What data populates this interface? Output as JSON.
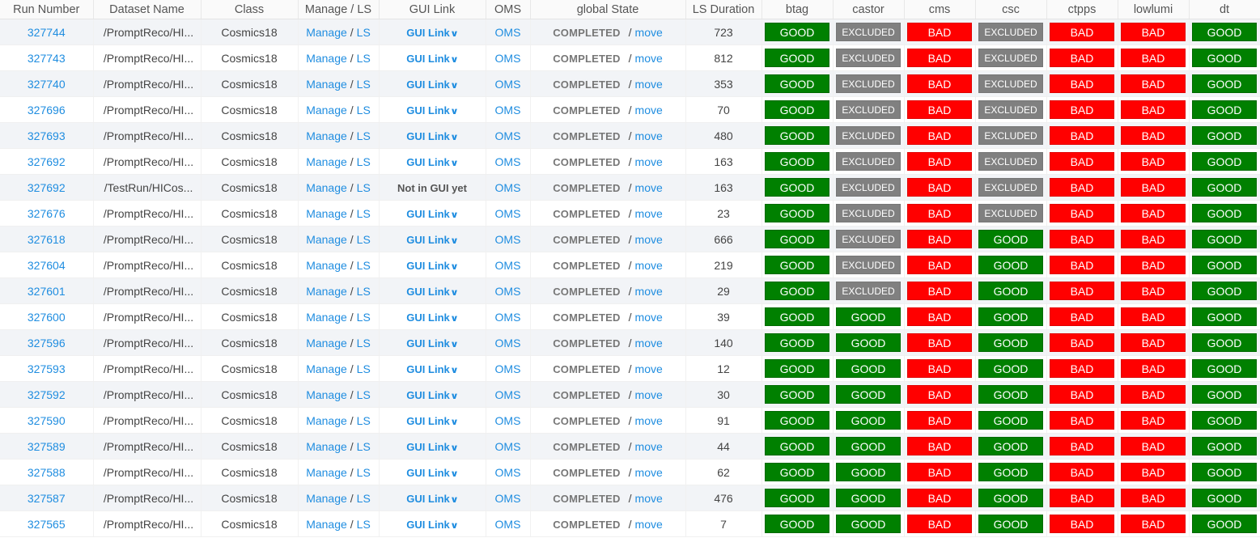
{
  "colors": {
    "good": "#008000",
    "bad": "#ff0000",
    "excluded": "#808080",
    "link": "#1f8de0"
  },
  "icons": {
    "gui_dropdown": "chevron-down-icon"
  },
  "columns": [
    "Run Number",
    "Dataset Name",
    "Class",
    "Manage / LS",
    "GUI Link",
    "OMS",
    "global State",
    "LS Duration",
    "btag",
    "castor",
    "cms",
    "csc",
    "ctpps",
    "lowlumi",
    "dt"
  ],
  "labels": {
    "manage": "Manage",
    "slash": "/",
    "ls": "LS",
    "gui_link": "GUI Link",
    "not_in_gui": "Not in GUI yet",
    "oms": "OMS",
    "move": "move"
  },
  "rows": [
    {
      "run": "327744",
      "dataset": "/PromptReco/HI...",
      "class": "Cosmics18",
      "gui": "GUI Link",
      "state": "COMPLETED",
      "duration": "723",
      "flags": [
        "GOOD",
        "EXCLUDED",
        "BAD",
        "EXCLUDED",
        "BAD",
        "BAD",
        "GOOD"
      ]
    },
    {
      "run": "327743",
      "dataset": "/PromptReco/HI...",
      "class": "Cosmics18",
      "gui": "GUI Link",
      "state": "COMPLETED",
      "duration": "812",
      "flags": [
        "GOOD",
        "EXCLUDED",
        "BAD",
        "EXCLUDED",
        "BAD",
        "BAD",
        "GOOD"
      ]
    },
    {
      "run": "327740",
      "dataset": "/PromptReco/HI...",
      "class": "Cosmics18",
      "gui": "GUI Link",
      "state": "COMPLETED",
      "duration": "353",
      "flags": [
        "GOOD",
        "EXCLUDED",
        "BAD",
        "EXCLUDED",
        "BAD",
        "BAD",
        "GOOD"
      ]
    },
    {
      "run": "327696",
      "dataset": "/PromptReco/HI...",
      "class": "Cosmics18",
      "gui": "GUI Link",
      "state": "COMPLETED",
      "duration": "70",
      "flags": [
        "GOOD",
        "EXCLUDED",
        "BAD",
        "EXCLUDED",
        "BAD",
        "BAD",
        "GOOD"
      ]
    },
    {
      "run": "327693",
      "dataset": "/PromptReco/HI...",
      "class": "Cosmics18",
      "gui": "GUI Link",
      "state": "COMPLETED",
      "duration": "480",
      "flags": [
        "GOOD",
        "EXCLUDED",
        "BAD",
        "EXCLUDED",
        "BAD",
        "BAD",
        "GOOD"
      ]
    },
    {
      "run": "327692",
      "dataset": "/PromptReco/HI...",
      "class": "Cosmics18",
      "gui": "GUI Link",
      "state": "COMPLETED",
      "duration": "163",
      "flags": [
        "GOOD",
        "EXCLUDED",
        "BAD",
        "EXCLUDED",
        "BAD",
        "BAD",
        "GOOD"
      ]
    },
    {
      "run": "327692",
      "dataset": "/TestRun/HICos...",
      "class": "Cosmics18",
      "gui": "Not in GUI yet",
      "state": "COMPLETED",
      "duration": "163",
      "flags": [
        "GOOD",
        "EXCLUDED",
        "BAD",
        "EXCLUDED",
        "BAD",
        "BAD",
        "GOOD"
      ]
    },
    {
      "run": "327676",
      "dataset": "/PromptReco/HI...",
      "class": "Cosmics18",
      "gui": "GUI Link",
      "state": "COMPLETED",
      "duration": "23",
      "flags": [
        "GOOD",
        "EXCLUDED",
        "BAD",
        "EXCLUDED",
        "BAD",
        "BAD",
        "GOOD"
      ]
    },
    {
      "run": "327618",
      "dataset": "/PromptReco/HI...",
      "class": "Cosmics18",
      "gui": "GUI Link",
      "state": "COMPLETED",
      "duration": "666",
      "flags": [
        "GOOD",
        "EXCLUDED",
        "BAD",
        "GOOD",
        "BAD",
        "BAD",
        "GOOD"
      ]
    },
    {
      "run": "327604",
      "dataset": "/PromptReco/HI...",
      "class": "Cosmics18",
      "gui": "GUI Link",
      "state": "COMPLETED",
      "duration": "219",
      "flags": [
        "GOOD",
        "EXCLUDED",
        "BAD",
        "GOOD",
        "BAD",
        "BAD",
        "GOOD"
      ]
    },
    {
      "run": "327601",
      "dataset": "/PromptReco/HI...",
      "class": "Cosmics18",
      "gui": "GUI Link",
      "state": "COMPLETED",
      "duration": "29",
      "flags": [
        "GOOD",
        "EXCLUDED",
        "BAD",
        "GOOD",
        "BAD",
        "BAD",
        "GOOD"
      ]
    },
    {
      "run": "327600",
      "dataset": "/PromptReco/HI...",
      "class": "Cosmics18",
      "gui": "GUI Link",
      "state": "COMPLETED",
      "duration": "39",
      "flags": [
        "GOOD",
        "GOOD",
        "BAD",
        "GOOD",
        "BAD",
        "BAD",
        "GOOD"
      ]
    },
    {
      "run": "327596",
      "dataset": "/PromptReco/HI...",
      "class": "Cosmics18",
      "gui": "GUI Link",
      "state": "COMPLETED",
      "duration": "140",
      "flags": [
        "GOOD",
        "GOOD",
        "BAD",
        "GOOD",
        "BAD",
        "BAD",
        "GOOD"
      ]
    },
    {
      "run": "327593",
      "dataset": "/PromptReco/HI...",
      "class": "Cosmics18",
      "gui": "GUI Link",
      "state": "COMPLETED",
      "duration": "12",
      "flags": [
        "GOOD",
        "GOOD",
        "BAD",
        "GOOD",
        "BAD",
        "BAD",
        "GOOD"
      ]
    },
    {
      "run": "327592",
      "dataset": "/PromptReco/HI...",
      "class": "Cosmics18",
      "gui": "GUI Link",
      "state": "COMPLETED",
      "duration": "30",
      "flags": [
        "GOOD",
        "GOOD",
        "BAD",
        "GOOD",
        "BAD",
        "BAD",
        "GOOD"
      ]
    },
    {
      "run": "327590",
      "dataset": "/PromptReco/HI...",
      "class": "Cosmics18",
      "gui": "GUI Link",
      "state": "COMPLETED",
      "duration": "91",
      "flags": [
        "GOOD",
        "GOOD",
        "BAD",
        "GOOD",
        "BAD",
        "BAD",
        "GOOD"
      ]
    },
    {
      "run": "327589",
      "dataset": "/PromptReco/HI...",
      "class": "Cosmics18",
      "gui": "GUI Link",
      "state": "COMPLETED",
      "duration": "44",
      "flags": [
        "GOOD",
        "GOOD",
        "BAD",
        "GOOD",
        "BAD",
        "BAD",
        "GOOD"
      ]
    },
    {
      "run": "327588",
      "dataset": "/PromptReco/HI...",
      "class": "Cosmics18",
      "gui": "GUI Link",
      "state": "COMPLETED",
      "duration": "62",
      "flags": [
        "GOOD",
        "GOOD",
        "BAD",
        "GOOD",
        "BAD",
        "BAD",
        "GOOD"
      ]
    },
    {
      "run": "327587",
      "dataset": "/PromptReco/HI...",
      "class": "Cosmics18",
      "gui": "GUI Link",
      "state": "COMPLETED",
      "duration": "476",
      "flags": [
        "GOOD",
        "GOOD",
        "BAD",
        "GOOD",
        "BAD",
        "BAD",
        "GOOD"
      ]
    },
    {
      "run": "327565",
      "dataset": "/PromptReco/HI...",
      "class": "Cosmics18",
      "gui": "GUI Link",
      "state": "COMPLETED",
      "duration": "7",
      "flags": [
        "GOOD",
        "GOOD",
        "BAD",
        "GOOD",
        "BAD",
        "BAD",
        "GOOD"
      ]
    }
  ]
}
